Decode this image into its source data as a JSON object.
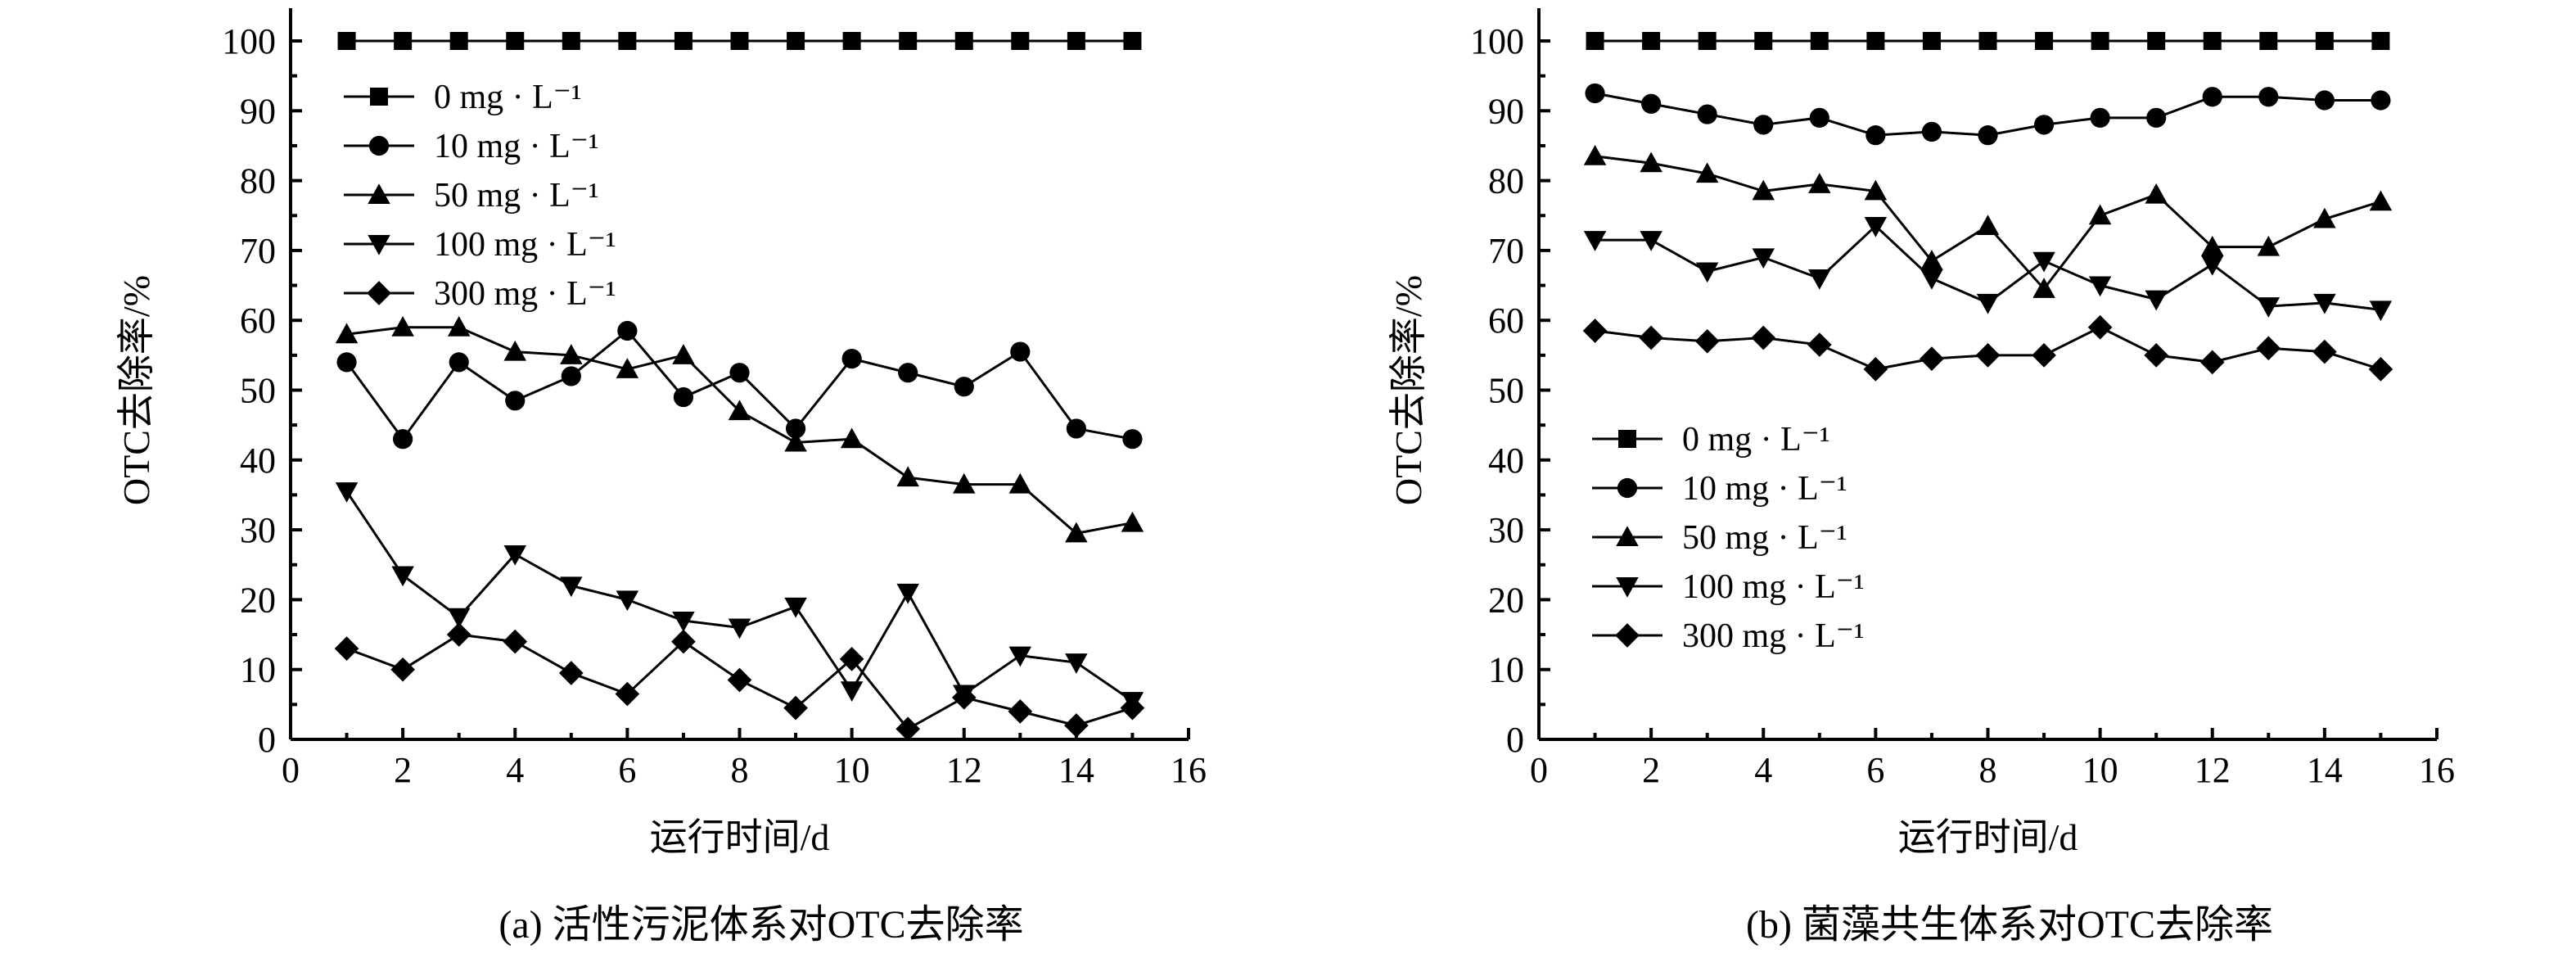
{
  "chart_data": [
    {
      "type": "line",
      "caption": "(a) 活性污泥体系对OTC去除率",
      "xlabel": "运行时间/d",
      "ylabel": "OTC去除率/%",
      "xlim": [
        0,
        16
      ],
      "ylim": [
        0,
        100
      ],
      "x_ticks": [
        0,
        2,
        4,
        6,
        8,
        10,
        12,
        14,
        16
      ],
      "y_ticks": [
        0,
        10,
        20,
        30,
        40,
        50,
        60,
        70,
        80,
        90,
        100
      ],
      "legend_position": "top-left",
      "grid": false,
      "x": [
        1,
        2,
        3,
        4,
        5,
        6,
        7,
        8,
        9,
        10,
        11,
        12,
        13,
        14,
        15
      ],
      "series": [
        {
          "name": "0 mg · L⁻¹",
          "marker": "square",
          "values": [
            100,
            100,
            100,
            100,
            100,
            100,
            100,
            100,
            100,
            100,
            100,
            100,
            100,
            100,
            100
          ]
        },
        {
          "name": "10 mg · L⁻¹",
          "marker": "circle",
          "values": [
            54,
            43,
            54,
            48.5,
            52,
            58.5,
            49,
            52.5,
            44.5,
            54.5,
            52.5,
            50.5,
            55.5,
            44.5,
            43
          ]
        },
        {
          "name": "50 mg · L⁻¹",
          "marker": "triangle-up",
          "values": [
            58,
            59,
            59,
            55.5,
            55,
            53,
            55,
            47,
            42.5,
            43,
            37.5,
            36.5,
            36.5,
            29.5,
            31
          ]
        },
        {
          "name": "100 mg · L⁻¹",
          "marker": "triangle-down",
          "values": [
            35.5,
            23.5,
            17.5,
            26.5,
            22,
            20,
            17,
            16,
            19,
            7,
            21,
            6.5,
            12,
            11,
            5.5
          ]
        },
        {
          "name": "300 mg · L⁻¹",
          "marker": "diamond",
          "values": [
            13,
            10,
            15,
            14,
            9.5,
            6.5,
            14,
            8.5,
            4.5,
            11.5,
            1.5,
            6,
            4,
            2,
            4.5
          ]
        }
      ]
    },
    {
      "type": "line",
      "caption": "(b) 菌藻共生体系对OTC去除率",
      "xlabel": "运行时间/d",
      "ylabel": "OTC去除率/%",
      "xlim": [
        0,
        16
      ],
      "ylim": [
        0,
        100
      ],
      "x_ticks": [
        0,
        2,
        4,
        6,
        8,
        10,
        12,
        14,
        16
      ],
      "y_ticks": [
        0,
        10,
        20,
        30,
        40,
        50,
        60,
        70,
        80,
        90,
        100
      ],
      "legend_position": "bottom-left",
      "grid": false,
      "x": [
        1,
        2,
        3,
        4,
        5,
        6,
        7,
        8,
        9,
        10,
        11,
        12,
        13,
        14,
        15
      ],
      "series": [
        {
          "name": "0 mg · L⁻¹",
          "marker": "square",
          "values": [
            100,
            100,
            100,
            100,
            100,
            100,
            100,
            100,
            100,
            100,
            100,
            100,
            100,
            100,
            100
          ]
        },
        {
          "name": "10 mg · L⁻¹",
          "marker": "circle",
          "values": [
            92.5,
            91,
            89.5,
            88,
            89,
            86.5,
            87,
            86.5,
            88,
            89,
            89,
            92,
            92,
            91.5,
            91.5
          ]
        },
        {
          "name": "50 mg · L⁻¹",
          "marker": "triangle-up",
          "values": [
            83.5,
            82.5,
            81,
            78.5,
            79.5,
            78.5,
            68.5,
            73.5,
            64.5,
            75,
            78,
            70.5,
            70.5,
            74.5,
            77
          ]
        },
        {
          "name": "100 mg · L⁻¹",
          "marker": "triangle-down",
          "values": [
            71.5,
            71.5,
            67,
            69,
            66,
            73.5,
            66,
            62.5,
            68.5,
            65,
            63,
            68,
            62,
            62.5,
            61.5
          ]
        },
        {
          "name": "300 mg · L⁻¹",
          "marker": "diamond",
          "values": [
            58.5,
            57.5,
            57,
            57.5,
            56.5,
            53,
            54.5,
            55,
            55,
            59,
            55,
            54,
            56,
            55.5,
            53
          ]
        }
      ]
    }
  ]
}
